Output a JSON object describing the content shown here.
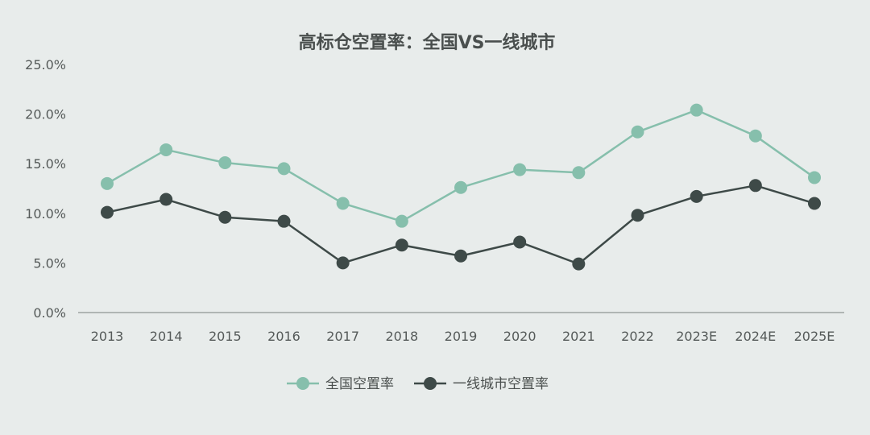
{
  "chart_data": {
    "type": "line",
    "title": "高标仓空置率：全国VS一线城市",
    "xlabel": "",
    "ylabel": "",
    "categories": [
      "2013",
      "2014",
      "2015",
      "2016",
      "2017",
      "2018",
      "2019",
      "2020",
      "2021",
      "2022",
      "2023E",
      "2024E",
      "2025E"
    ],
    "yticks": [
      "0.0%",
      "5.0%",
      "10.0%",
      "15.0%",
      "20.0%",
      "25.0%"
    ],
    "ylim": [
      0,
      25
    ],
    "grid": false,
    "legend": "bottom",
    "series": [
      {
        "name": "全国空置率",
        "color": "#86bfac",
        "values": [
          13.0,
          16.4,
          15.1,
          14.5,
          11.0,
          9.2,
          12.6,
          14.4,
          14.1,
          18.2,
          20.4,
          17.8,
          13.6
        ]
      },
      {
        "name": "一线城市空置率",
        "color": "#3e4a48",
        "values": [
          10.1,
          11.4,
          9.6,
          9.2,
          5.0,
          6.8,
          5.7,
          7.1,
          4.9,
          9.8,
          11.7,
          12.8,
          11.0
        ]
      }
    ]
  }
}
